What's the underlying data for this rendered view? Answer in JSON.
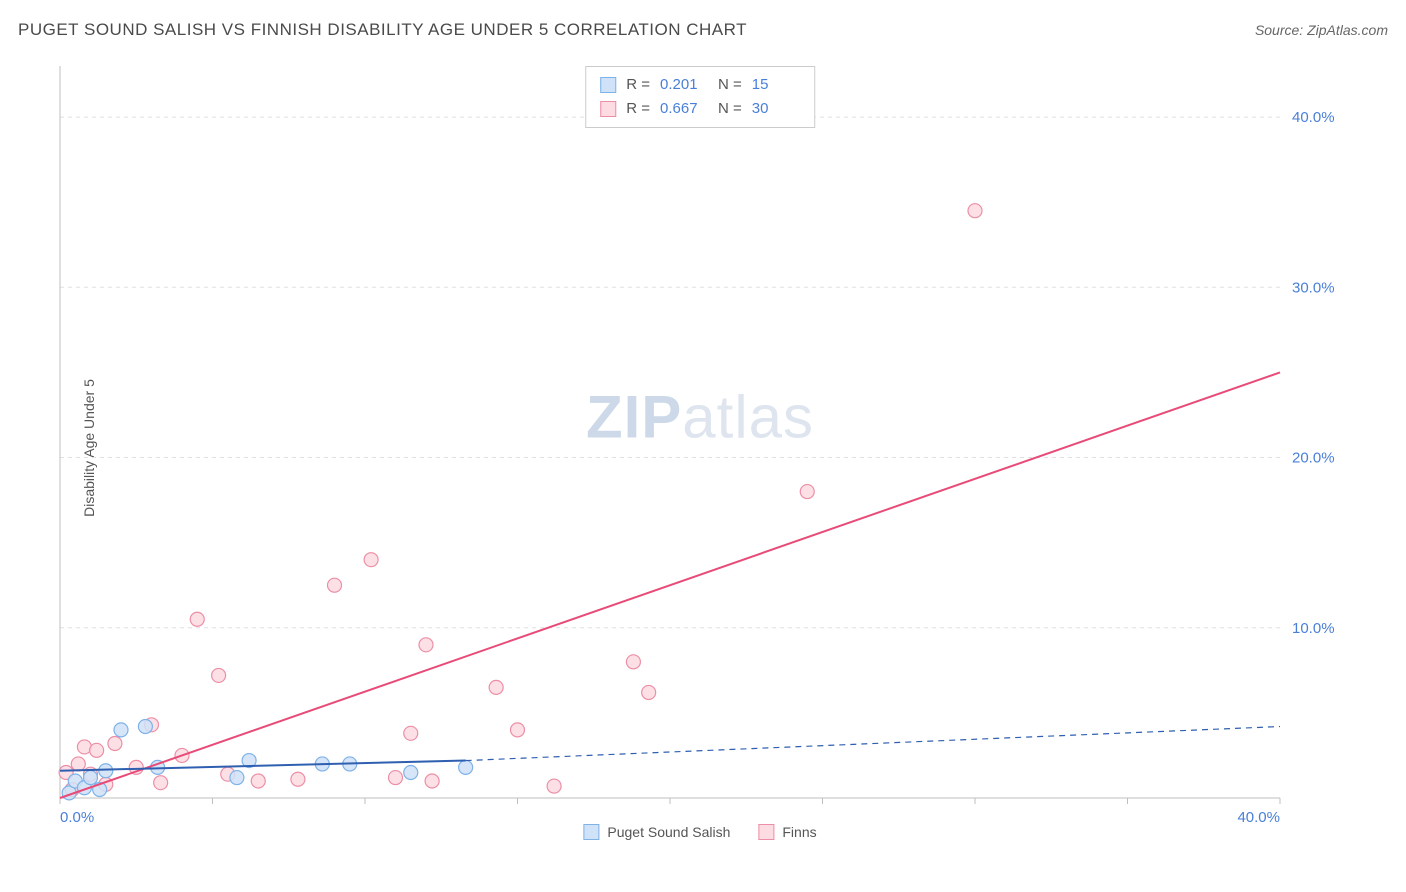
{
  "title": "PUGET SOUND SALISH VS FINNISH DISABILITY AGE UNDER 5 CORRELATION CHART",
  "source_label": "Source: ZipAtlas.com",
  "ylabel": "Disability Age Under 5",
  "watermark_a": "ZIP",
  "watermark_b": "atlas",
  "legend_r_label": "R =",
  "legend_n_label": "N =",
  "xlegend": {
    "a": "Puget Sound Salish",
    "b": "Finns"
  },
  "chart": {
    "type": "scatter",
    "xlim": [
      0,
      40
    ],
    "ylim": [
      0,
      43
    ],
    "x_ticks": [
      0,
      5,
      10,
      15,
      20,
      25,
      30,
      35,
      40
    ],
    "y_ticks": [
      10,
      20,
      30,
      40
    ],
    "x_tick_labels": [
      "0.0%",
      "",
      "",
      "",
      "",
      "",
      "",
      "",
      "40.0%"
    ],
    "y_tick_labels": [
      "10.0%",
      "20.0%",
      "30.0%",
      "40.0%"
    ],
    "grid_color": "#e0e0e0",
    "grid_dash": "4,4",
    "axis_color": "#bfbfbf",
    "tick_label_color": "#4a7fd8",
    "background": "#ffffff",
    "marker_radius": 7,
    "marker_stroke_width": 1.2,
    "line_width": 2,
    "series": {
      "salish": {
        "label": "Puget Sound Salish",
        "R": "0.201",
        "N": "15",
        "fill": "#cfe2f7",
        "stroke": "#7fb2e8",
        "line_color": "#2f5fb0",
        "points": [
          [
            0.3,
            0.3
          ],
          [
            0.5,
            1.0
          ],
          [
            0.8,
            0.6
          ],
          [
            1.0,
            1.2
          ],
          [
            1.3,
            0.5
          ],
          [
            1.5,
            1.6
          ],
          [
            2.0,
            4.0
          ],
          [
            2.8,
            4.2
          ],
          [
            3.2,
            1.8
          ],
          [
            5.8,
            1.2
          ],
          [
            6.2,
            2.2
          ],
          [
            8.6,
            2.0
          ],
          [
            9.5,
            2.0
          ],
          [
            11.5,
            1.5
          ],
          [
            13.3,
            1.8
          ]
        ],
        "fit": {
          "x1": 0,
          "y1": 1.6,
          "x2": 13.3,
          "y2": 2.2
        },
        "fit_ext": {
          "x1": 13.3,
          "y1": 2.2,
          "x2": 40,
          "y2": 4.2,
          "dash": "6,5"
        }
      },
      "finns": {
        "label": "Finns",
        "R": "0.667",
        "N": "30",
        "fill": "#fcdbe2",
        "stroke": "#ec8fa6",
        "line_color": "#e84b77",
        "points": [
          [
            0.2,
            1.5
          ],
          [
            0.4,
            0.5
          ],
          [
            0.6,
            2.0
          ],
          [
            0.8,
            3.0
          ],
          [
            1.0,
            1.4
          ],
          [
            1.2,
            2.8
          ],
          [
            1.5,
            0.8
          ],
          [
            1.8,
            3.2
          ],
          [
            2.5,
            1.8
          ],
          [
            3.0,
            4.3
          ],
          [
            3.3,
            0.9
          ],
          [
            4.0,
            2.5
          ],
          [
            4.5,
            10.5
          ],
          [
            5.2,
            7.2
          ],
          [
            5.5,
            1.4
          ],
          [
            6.5,
            1.0
          ],
          [
            7.8,
            1.1
          ],
          [
            9.0,
            12.5
          ],
          [
            10.2,
            14.0
          ],
          [
            11.0,
            1.2
          ],
          [
            11.5,
            3.8
          ],
          [
            12.0,
            9.0
          ],
          [
            12.2,
            1.0
          ],
          [
            14.3,
            6.5
          ],
          [
            15.0,
            4.0
          ],
          [
            16.2,
            0.7
          ],
          [
            18.8,
            8.0
          ],
          [
            19.3,
            6.2
          ],
          [
            24.5,
            18.0
          ],
          [
            30.0,
            34.5
          ]
        ],
        "fit": {
          "x1": 0,
          "y1": 0,
          "x2": 40,
          "y2": 25
        }
      }
    }
  }
}
